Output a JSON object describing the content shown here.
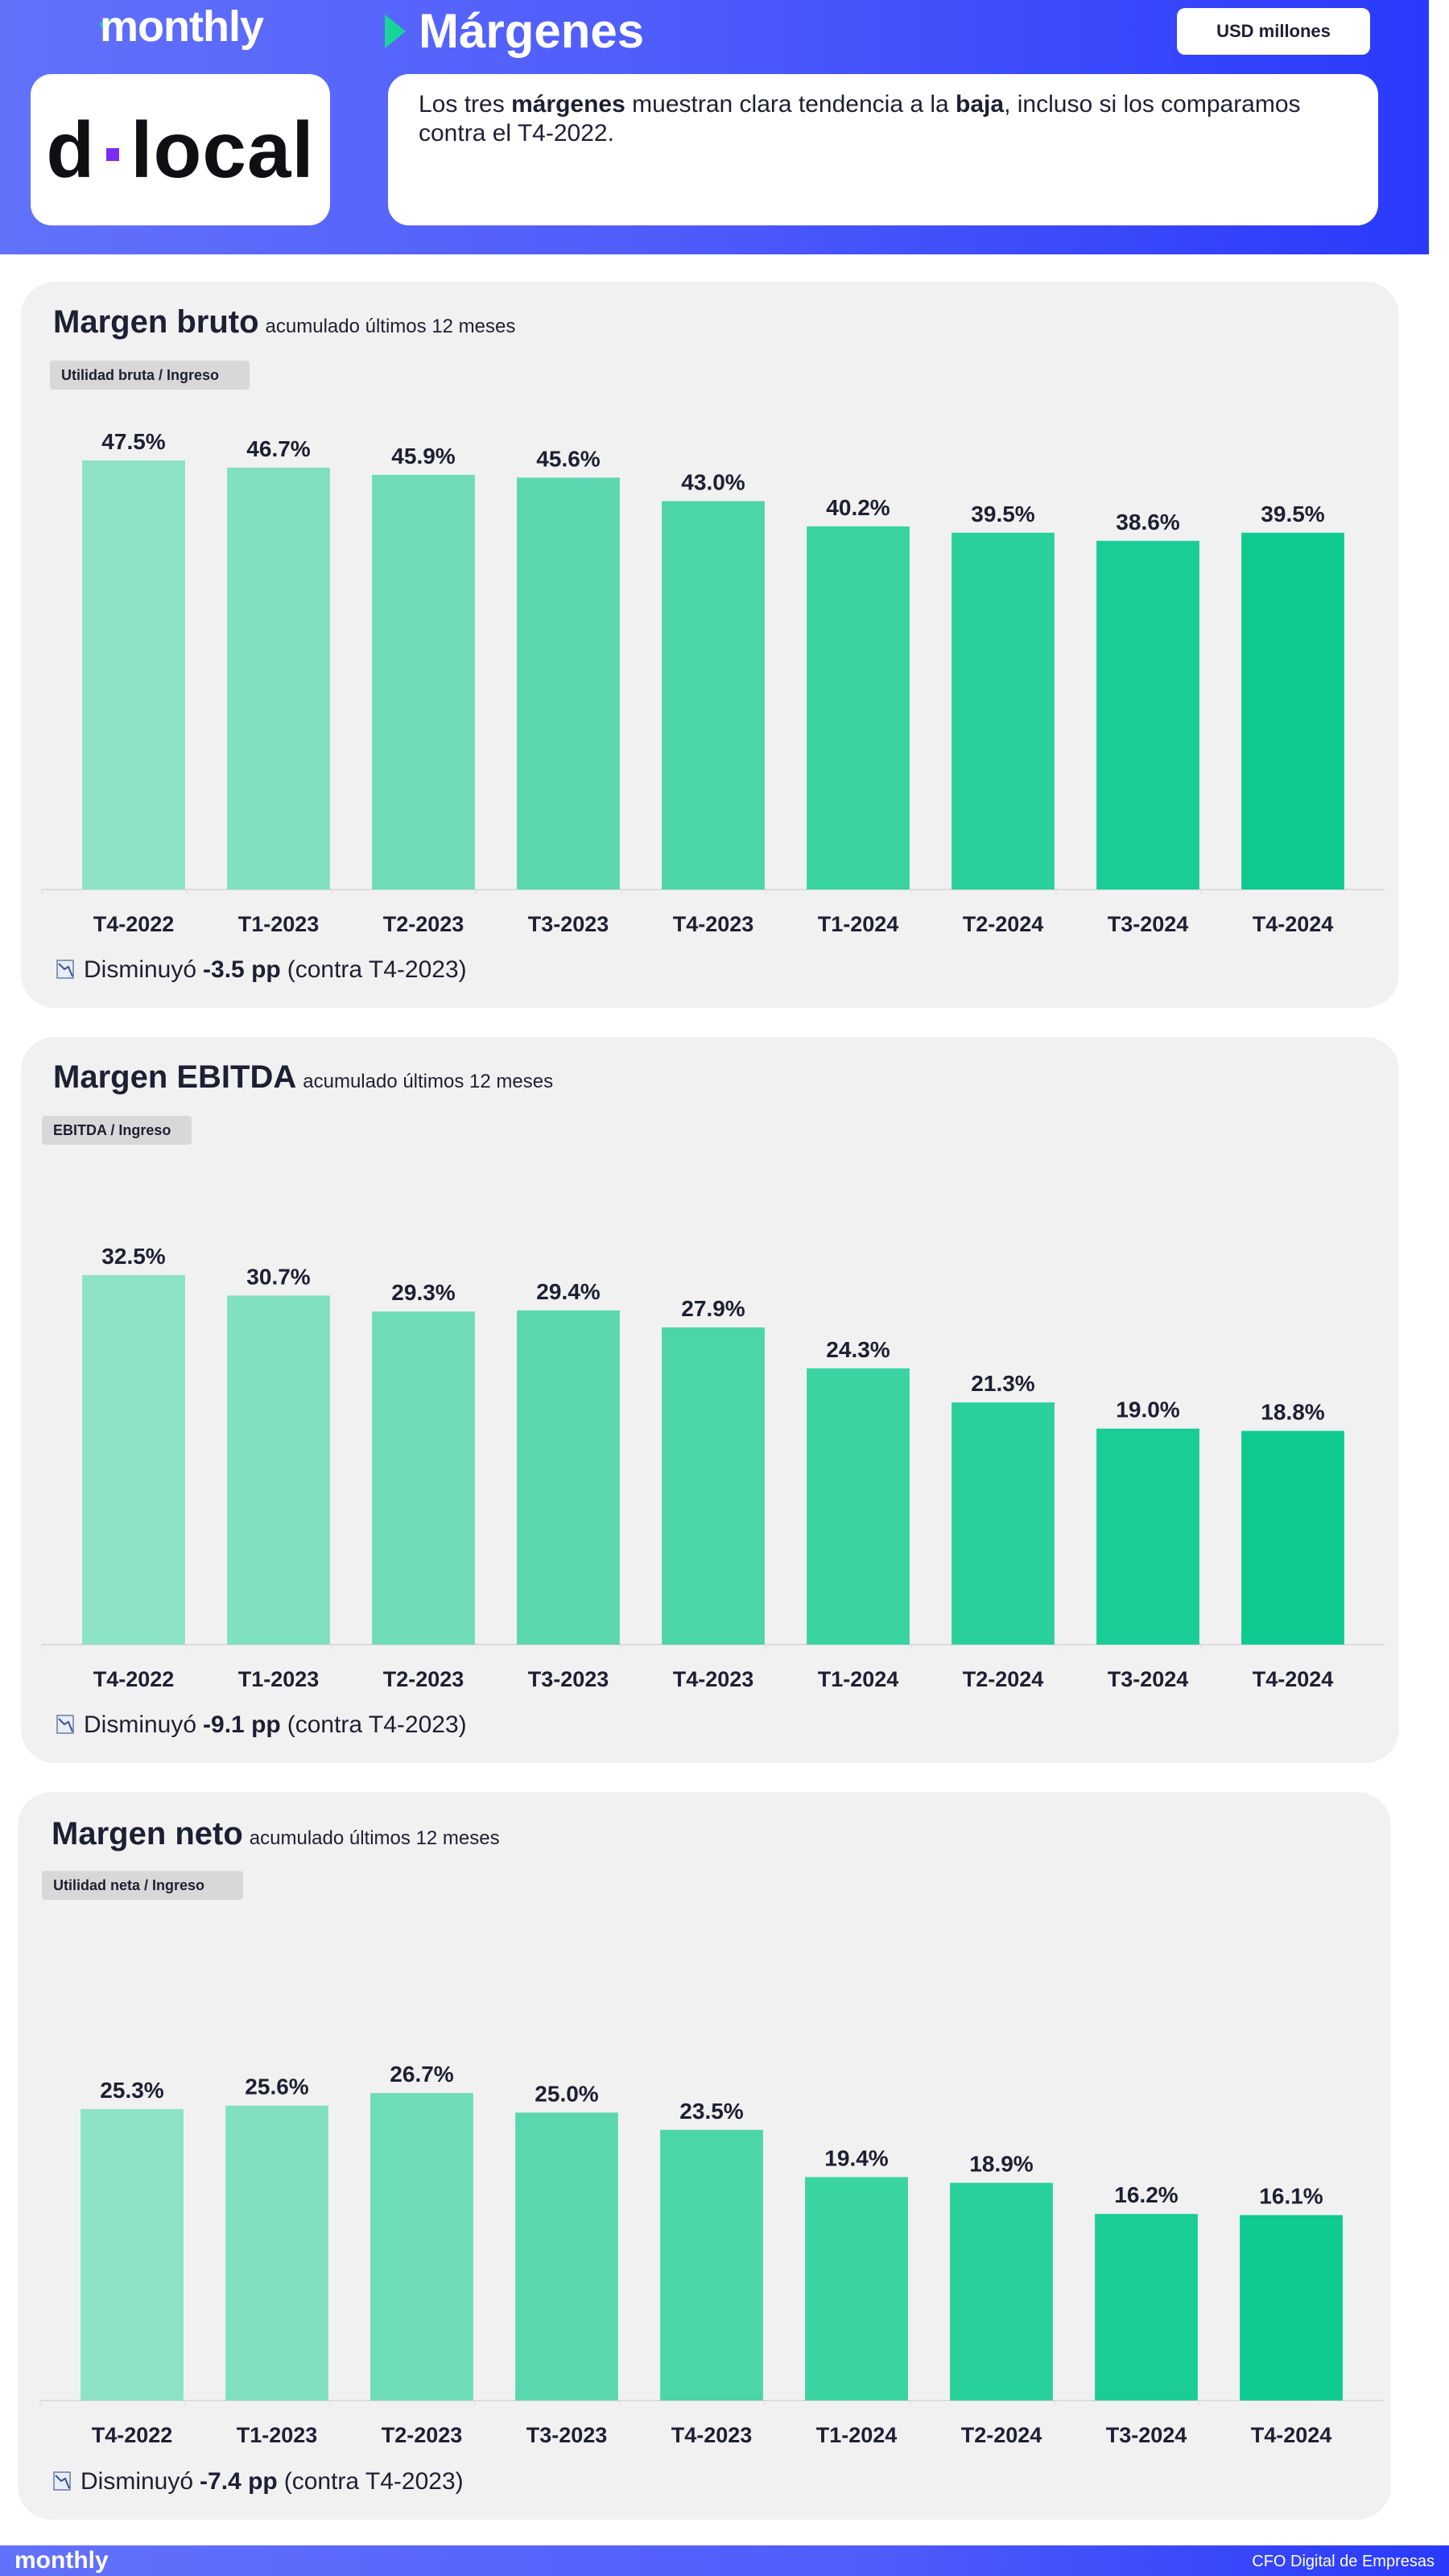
{
  "header": {
    "brand": "monthly",
    "logo_left": "d",
    "logo_right": "local",
    "title": "Márgenes",
    "unit": "USD millones",
    "description": {
      "p1": "Los tres ",
      "b1": "márgenes",
      "p2": "  muestran clara tendencia a la ",
      "b2": "baja",
      "p3": ", incluso si los comparamos contra el T4-2022."
    }
  },
  "colors": {
    "bars": [
      "#8de3c6",
      "#80e0c0",
      "#6fdcb8",
      "#5cd8b0",
      "#4cd5a9",
      "#3ad3a2",
      "#2ad09c",
      "#1acd96",
      "#0fcb91"
    ]
  },
  "panels": [
    {
      "title": "Margen bruto",
      "subtitle": "acumulado últimos 12 meses",
      "formula": "Utilidad bruta /  Ingreso",
      "delta_prefix": "Disminuyó",
      "delta_value": "-3.5 pp",
      "delta_suffix": "(contra T4-2023)"
    },
    {
      "title": "Margen EBITDA",
      "subtitle": "acumulado últimos 12 meses",
      "formula": "EBITDA  /  Ingreso",
      "delta_prefix": "Disminuyó",
      "delta_value": "-9.1 pp",
      "delta_suffix": "(contra T4-2023)"
    },
    {
      "title": "Margen neto",
      "subtitle": "acumulado últimos 12 meses",
      "formula": "Utilidad neta /  Ingreso",
      "delta_prefix": "Disminuyó",
      "delta_value": "-7.4 pp",
      "delta_suffix": "(contra T4-2023)"
    }
  ],
  "chart_data": [
    {
      "type": "bar",
      "title": "Margen bruto",
      "categories": [
        "T4-2022",
        "T1-2023",
        "T2-2023",
        "T3-2023",
        "T4-2023",
        "T1-2024",
        "T2-2024",
        "T3-2024",
        "T4-2024"
      ],
      "values": [
        47.5,
        46.7,
        45.9,
        45.6,
        43.0,
        40.2,
        39.5,
        38.6,
        39.5
      ],
      "labels": [
        "47.5%",
        "46.7%",
        "45.9%",
        "45.6%",
        "43.0%",
        "40.2%",
        "39.5%",
        "38.6%",
        "39.5%"
      ],
      "ylim": [
        0,
        47.5
      ]
    },
    {
      "type": "bar",
      "title": "Margen EBITDA",
      "categories": [
        "T4-2022",
        "T1-2023",
        "T2-2023",
        "T3-2023",
        "T4-2023",
        "T1-2024",
        "T2-2024",
        "T3-2024",
        "T4-2024"
      ],
      "values": [
        32.5,
        30.7,
        29.3,
        29.4,
        27.9,
        24.3,
        21.3,
        19.0,
        18.8
      ],
      "labels": [
        "32.5%",
        "30.7%",
        "29.3%",
        "29.4%",
        "27.9%",
        "24.3%",
        "21.3%",
        "19.0%",
        "18.8%"
      ],
      "ylim": [
        0,
        32.5
      ]
    },
    {
      "type": "bar",
      "title": "Margen neto",
      "categories": [
        "T4-2022",
        "T1-2023",
        "T2-2023",
        "T3-2023",
        "T4-2023",
        "T1-2024",
        "T2-2024",
        "T3-2024",
        "T4-2024"
      ],
      "values": [
        25.3,
        25.6,
        26.7,
        25.0,
        23.5,
        19.4,
        18.9,
        16.2,
        16.1
      ],
      "labels": [
        "25.3%",
        "25.6%",
        "26.7%",
        "25.0%",
        "23.5%",
        "19.4%",
        "18.9%",
        "16.2%",
        "16.1%"
      ],
      "ylim": [
        0,
        26.7
      ]
    }
  ],
  "footer": {
    "brand": "monthly",
    "credit": "CFO Digital de Empresas"
  }
}
